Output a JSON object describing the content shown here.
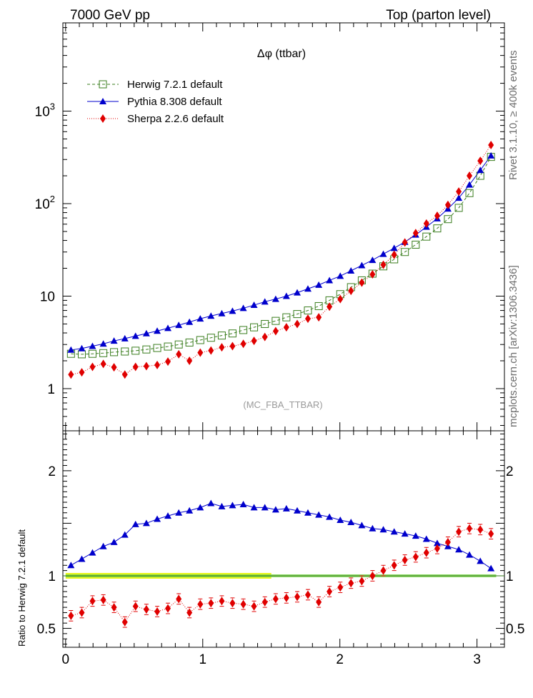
{
  "header": {
    "left": "7000 GeV pp",
    "right": "Top (parton level)"
  },
  "side_labels": {
    "rivet": "Rivet 3.1.10, ≥ 400k events",
    "mcplots": "mcplots.cern.ch [arXiv:1306.3436]"
  },
  "watermark": "(MC_FBA_TTBAR)",
  "colors": {
    "herwig": "#3a7d1e",
    "pythia": "#0000cc",
    "sherpa": "#e00000",
    "band_outer": "#e8f500",
    "band_inner": "#78d24a"
  },
  "chart_data": [
    {
      "type": "line",
      "title": "Δφ (ttbar)",
      "xlabel": "",
      "ylabel": "",
      "xlim": [
        -0.02,
        3.2
      ],
      "ylim": [
        0.35,
        9000
      ],
      "yscale": "log",
      "yticks": [
        {
          "value": 1,
          "label": "1"
        },
        {
          "value": 10,
          "label": "10"
        },
        {
          "value": 100,
          "label": "10",
          "exp": "2"
        },
        {
          "value": 1000,
          "label": "10",
          "exp": "3"
        }
      ],
      "legend_position": "top-left",
      "x": [
        0.039,
        0.118,
        0.196,
        0.275,
        0.353,
        0.432,
        0.51,
        0.589,
        0.668,
        0.746,
        0.825,
        0.903,
        0.982,
        1.06,
        1.139,
        1.217,
        1.296,
        1.374,
        1.453,
        1.532,
        1.61,
        1.689,
        1.767,
        1.846,
        1.924,
        2.003,
        2.081,
        2.16,
        2.238,
        2.317,
        2.396,
        2.474,
        2.553,
        2.631,
        2.71,
        2.788,
        2.867,
        2.945,
        3.024,
        3.102
      ],
      "series": [
        {
          "name": "Herwig 7.2.1 default",
          "marker": "open-square",
          "line": "dashed",
          "values": [
            2.38,
            2.35,
            2.38,
            2.42,
            2.48,
            2.52,
            2.57,
            2.65,
            2.75,
            2.85,
            3.0,
            3.15,
            3.35,
            3.55,
            3.75,
            3.95,
            4.3,
            4.6,
            5.0,
            5.4,
            5.9,
            6.4,
            7.0,
            7.8,
            9.0,
            10.5,
            12.5,
            14.8,
            17.5,
            21.0,
            25.0,
            30.0,
            36.0,
            44.0,
            54.0,
            68.0,
            90.0,
            130.0,
            200.0,
            320.0
          ]
        },
        {
          "name": "Pythia 8.308 default",
          "marker": "filled-triangle",
          "line": "solid",
          "values": [
            2.62,
            2.72,
            2.88,
            3.05,
            3.28,
            3.48,
            3.7,
            3.95,
            4.2,
            4.5,
            4.85,
            5.25,
            5.7,
            6.1,
            6.5,
            6.9,
            7.4,
            8.0,
            8.7,
            9.3,
            10.0,
            10.9,
            12.0,
            13.2,
            14.8,
            16.5,
            18.8,
            21.5,
            24.5,
            28.5,
            33.0,
            38.5,
            46.0,
            56.0,
            69.0,
            88.0,
            115.0,
            160.0,
            230.0,
            330.0
          ]
        },
        {
          "name": "Sherpa 2.2.6 default",
          "marker": "filled-diamond",
          "line": "dotted",
          "values": [
            1.42,
            1.5,
            1.72,
            1.85,
            1.7,
            1.42,
            1.72,
            1.75,
            1.8,
            1.96,
            2.35,
            2.0,
            2.45,
            2.58,
            2.8,
            2.88,
            3.05,
            3.28,
            3.62,
            4.18,
            4.6,
            5.0,
            5.7,
            5.9,
            7.7,
            9.3,
            11.4,
            14.0,
            17.2,
            21.8,
            28.0,
            38.0,
            48.0,
            61.0,
            74.0,
            97.0,
            135.0,
            200.0,
            290.0,
            430.0
          ]
        }
      ]
    },
    {
      "type": "line",
      "title": "",
      "xlabel": "",
      "ylabel": "Ratio to Herwig 7.2.1 default",
      "xlim": [
        -0.02,
        3.2
      ],
      "ylim": [
        0.32,
        2.38
      ],
      "xticks": [
        {
          "value": 0,
          "label": "0"
        },
        {
          "value": 1,
          "label": "1"
        },
        {
          "value": 2,
          "label": "2"
        },
        {
          "value": 3,
          "label": "3"
        }
      ],
      "yticks": [
        {
          "value": 0.5,
          "label": "0.5"
        },
        {
          "value": 1,
          "label": "1"
        },
        {
          "value": 2,
          "label": "2"
        }
      ],
      "reference_line": 1.0,
      "x": [
        0.039,
        0.118,
        0.196,
        0.275,
        0.353,
        0.432,
        0.51,
        0.589,
        0.668,
        0.746,
        0.825,
        0.903,
        0.982,
        1.06,
        1.139,
        1.217,
        1.296,
        1.374,
        1.453,
        1.532,
        1.61,
        1.689,
        1.767,
        1.846,
        1.924,
        2.003,
        2.081,
        2.16,
        2.238,
        2.317,
        2.396,
        2.474,
        2.553,
        2.631,
        2.71,
        2.788,
        2.867,
        2.945,
        3.024,
        3.102
      ],
      "series": [
        {
          "name": "Pythia 8.308 default",
          "values": [
            1.1,
            1.16,
            1.22,
            1.28,
            1.32,
            1.39,
            1.49,
            1.5,
            1.54,
            1.57,
            1.6,
            1.62,
            1.65,
            1.69,
            1.66,
            1.67,
            1.68,
            1.65,
            1.65,
            1.63,
            1.64,
            1.62,
            1.6,
            1.58,
            1.56,
            1.53,
            1.51,
            1.48,
            1.45,
            1.44,
            1.42,
            1.4,
            1.38,
            1.35,
            1.31,
            1.28,
            1.25,
            1.2,
            1.14,
            1.07
          ]
        },
        {
          "name": "Sherpa 2.2.6 default",
          "values": [
            0.62,
            0.65,
            0.76,
            0.77,
            0.7,
            0.56,
            0.71,
            0.68,
            0.66,
            0.69,
            0.78,
            0.65,
            0.73,
            0.74,
            0.76,
            0.74,
            0.73,
            0.71,
            0.75,
            0.78,
            0.79,
            0.8,
            0.82,
            0.75,
            0.85,
            0.89,
            0.93,
            0.95,
            1.0,
            1.05,
            1.1,
            1.15,
            1.18,
            1.22,
            1.26,
            1.32,
            1.42,
            1.45,
            1.44,
            1.4
          ]
        }
      ],
      "sherpa_error": 0.05
    }
  ]
}
